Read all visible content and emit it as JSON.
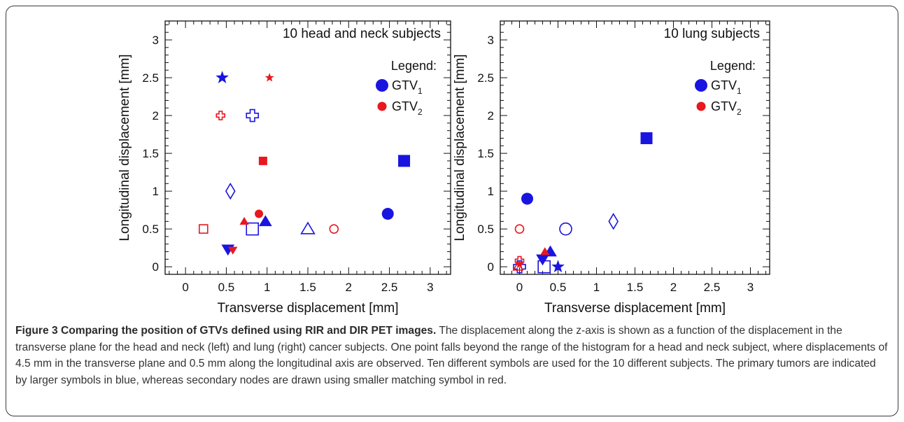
{
  "figure": {
    "caption_title": "Figure 3 Comparing the position of GTVs defined using RIR and DIR PET images.",
    "caption_body": " The displacement along the z-axis is shown as a function of the displacement in the transverse plane for the head and neck (left) and lung (right) cancer subjects. One point falls beyond the range of the histogram for a head and neck subject, where displacements of 4.5 mm in the transverse plane and 0.5 mm along the longitudinal axis are observed. Ten different symbols are used for the 10 different subjects. The primary tumors are indicated by larger symbols in blue, whereas secondary nodes are drawn using smaller matching symbol in red."
  },
  "colors": {
    "gtv1": "#1a14e0",
    "gtv2": "#e8181e",
    "axis": "#111111"
  },
  "chart_data": [
    {
      "type": "scatter",
      "title": "10 head and neck subjects",
      "xlabel": "Transverse displacement [mm]",
      "ylabel": "Longitudinal displacement [mm]",
      "xlim": [
        -0.25,
        3.25
      ],
      "ylim": [
        -0.1,
        3.25
      ],
      "xticks": [
        0,
        0.5,
        1,
        1.5,
        2,
        2.5,
        3
      ],
      "xtick_labels": [
        "0",
        "0.5",
        "1",
        "1.5",
        "2",
        "2.5",
        "3"
      ],
      "yticks": [
        0,
        0.5,
        1,
        1.5,
        2,
        2.5,
        3
      ],
      "ytick_labels": [
        "0",
        "0.5",
        "1",
        "1.5",
        "2",
        "2.5",
        "3"
      ],
      "legend": {
        "heading": "Legend:",
        "placement": "top-right",
        "entries": [
          {
            "label": "GTV",
            "sub": "1",
            "series": "GTV1"
          },
          {
            "label": "GTV",
            "sub": "2",
            "series": "GTV2"
          }
        ]
      },
      "series": [
        {
          "name": "GTV1",
          "points": [
            {
              "x": 0.45,
              "y": 2.5,
              "marker": "star",
              "filled": true
            },
            {
              "x": 0.82,
              "y": 2.0,
              "marker": "cross",
              "filled": false
            },
            {
              "x": 0.55,
              "y": 1.0,
              "marker": "diamond",
              "filled": false
            },
            {
              "x": 0.82,
              "y": 0.5,
              "marker": "square",
              "filled": false
            },
            {
              "x": 0.98,
              "y": 0.6,
              "marker": "triangle",
              "filled": true
            },
            {
              "x": 0.52,
              "y": 0.23,
              "marker": "tri-down",
              "filled": true
            },
            {
              "x": 1.5,
              "y": 0.5,
              "marker": "triangle",
              "filled": false
            },
            {
              "x": 2.48,
              "y": 0.7,
              "marker": "circle",
              "filled": true
            },
            {
              "x": 2.68,
              "y": 1.4,
              "marker": "square",
              "filled": true
            }
          ]
        },
        {
          "name": "GTV2",
          "points": [
            {
              "x": 1.03,
              "y": 2.5,
              "marker": "star",
              "filled": true
            },
            {
              "x": 0.43,
              "y": 2.0,
              "marker": "cross",
              "filled": false
            },
            {
              "x": 0.95,
              "y": 1.4,
              "marker": "square",
              "filled": true
            },
            {
              "x": 0.22,
              "y": 0.5,
              "marker": "square",
              "filled": false
            },
            {
              "x": 0.72,
              "y": 0.6,
              "marker": "triangle",
              "filled": true
            },
            {
              "x": 0.9,
              "y": 0.7,
              "marker": "circle",
              "filled": true
            },
            {
              "x": 0.58,
              "y": 0.22,
              "marker": "tri-down",
              "filled": true
            },
            {
              "x": 1.82,
              "y": 0.5,
              "marker": "circle",
              "filled": false
            }
          ]
        }
      ]
    },
    {
      "type": "scatter",
      "title": "10 lung subjects",
      "xlabel": "Transverse displacement [mm]",
      "ylabel": "Longitudinal displacement [mm]",
      "xlim": [
        -0.25,
        3.25
      ],
      "ylim": [
        -0.1,
        3.25
      ],
      "xticks": [
        0,
        0.5,
        1,
        1.5,
        2,
        2.5,
        3
      ],
      "xtick_labels": [
        "0",
        "0.5",
        "1",
        "1.5",
        "2",
        "2.5",
        "3"
      ],
      "yticks": [
        0,
        0.5,
        1,
        1.5,
        2,
        2.5,
        3
      ],
      "ytick_labels": [
        "0",
        "0.5",
        "1",
        "1.5",
        "2",
        "2.5",
        "3"
      ],
      "legend": {
        "heading": "Legend:",
        "placement": "top-right",
        "entries": [
          {
            "label": "GTV",
            "sub": "1",
            "series": "GTV1"
          },
          {
            "label": "GTV",
            "sub": "2",
            "series": "GTV2"
          }
        ]
      },
      "series": [
        {
          "name": "GTV1",
          "points": [
            {
              "x": 1.65,
              "y": 1.7,
              "marker": "square",
              "filled": true
            },
            {
              "x": 0.1,
              "y": 0.9,
              "marker": "circle",
              "filled": true
            },
            {
              "x": 0.6,
              "y": 0.5,
              "marker": "circle",
              "filled": false
            },
            {
              "x": 1.22,
              "y": 0.6,
              "marker": "diamond",
              "filled": false
            },
            {
              "x": 0.4,
              "y": 0.2,
              "marker": "triangle",
              "filled": true
            },
            {
              "x": 0.3,
              "y": 0.1,
              "marker": "tri-down",
              "filled": true
            },
            {
              "x": 0.32,
              "y": 0.0,
              "marker": "square",
              "filled": false
            },
            {
              "x": 0.5,
              "y": 0.0,
              "marker": "star",
              "filled": true
            },
            {
              "x": 0.0,
              "y": 0.0,
              "marker": "cross",
              "filled": false
            }
          ]
        },
        {
          "name": "GTV2",
          "points": [
            {
              "x": 0.0,
              "y": 0.5,
              "marker": "circle",
              "filled": false
            },
            {
              "x": 0.0,
              "y": 0.08,
              "marker": "cross",
              "filled": false
            },
            {
              "x": 0.33,
              "y": 0.2,
              "marker": "triangle",
              "filled": true
            },
            {
              "x": 0.0,
              "y": 0.03,
              "marker": "star",
              "filled": true
            },
            {
              "x": -0.02,
              "y": 0.0,
              "marker": "triangle",
              "filled": false
            }
          ]
        }
      ]
    }
  ]
}
